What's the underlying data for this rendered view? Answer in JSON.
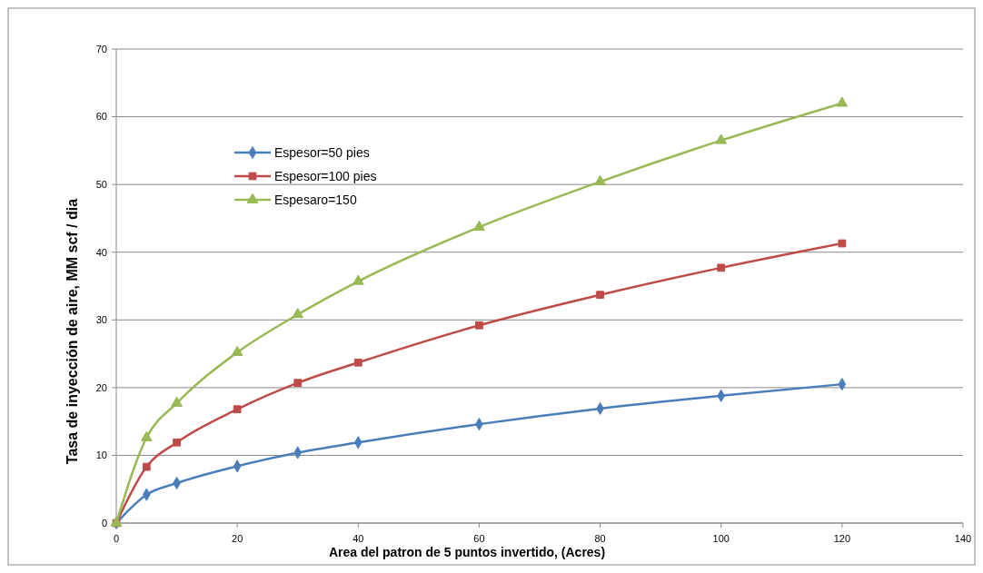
{
  "chart_data": {
    "type": "line",
    "xlabel": "Area del patron de 5 puntos invertido, (Acres)",
    "ylabel": "Tasa de inyección de aire, MM  scf / dia",
    "x": [
      0,
      5,
      10,
      20,
      30,
      40,
      60,
      80,
      100,
      120
    ],
    "xlim": [
      0,
      140
    ],
    "xticks": [
      0,
      20,
      40,
      60,
      80,
      100,
      120,
      140
    ],
    "ylim": [
      0,
      70
    ],
    "yticks": [
      0,
      10,
      20,
      30,
      40,
      50,
      60,
      70
    ],
    "grid": "y",
    "legend": "top left",
    "series": [
      {
        "name": "Espesor=50 pies",
        "color": "#4a7ebb",
        "marker": "diamond",
        "values": [
          0,
          4.2,
          5.9,
          8.4,
          10.4,
          11.9,
          14.6,
          16.9,
          18.8,
          20.5
        ]
      },
      {
        "name": "Espesor=100 pies",
        "color": "#be4b48",
        "marker": "square",
        "values": [
          0,
          8.3,
          11.9,
          16.8,
          20.7,
          23.7,
          29.2,
          33.7,
          37.7,
          41.3
        ]
      },
      {
        "name": "Espesaro=150",
        "color": "#98b954",
        "marker": "triangle",
        "values": [
          0,
          12.6,
          17.7,
          25.2,
          30.8,
          35.7,
          43.7,
          50.4,
          56.5,
          62.0
        ]
      }
    ]
  }
}
